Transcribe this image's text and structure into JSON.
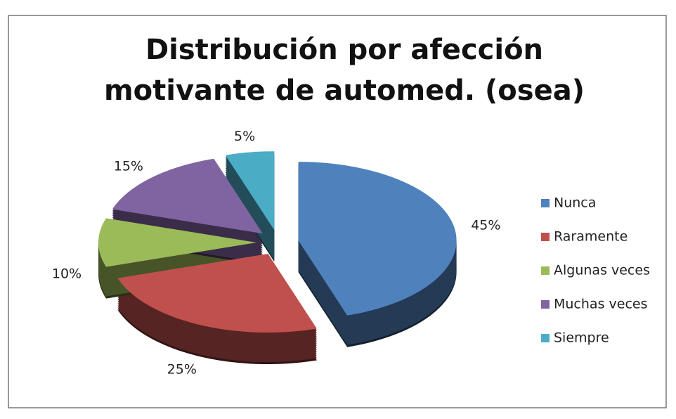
{
  "chart_data": {
    "type": "pie",
    "title": "Distribución por afección motivante de automed. (osea)",
    "categories": [
      "Nunca",
      "Raramente",
      "Algunas veces",
      "Muchas veces",
      "Siempre"
    ],
    "values": [
      45,
      25,
      10,
      15,
      5
    ],
    "value_labels": [
      "45%",
      "25%",
      "10%",
      "15%",
      "5%"
    ],
    "colors": [
      "#4f81bd",
      "#c0504d",
      "#9bbb59",
      "#8064a2",
      "#4bacc6"
    ],
    "legend": "right"
  }
}
